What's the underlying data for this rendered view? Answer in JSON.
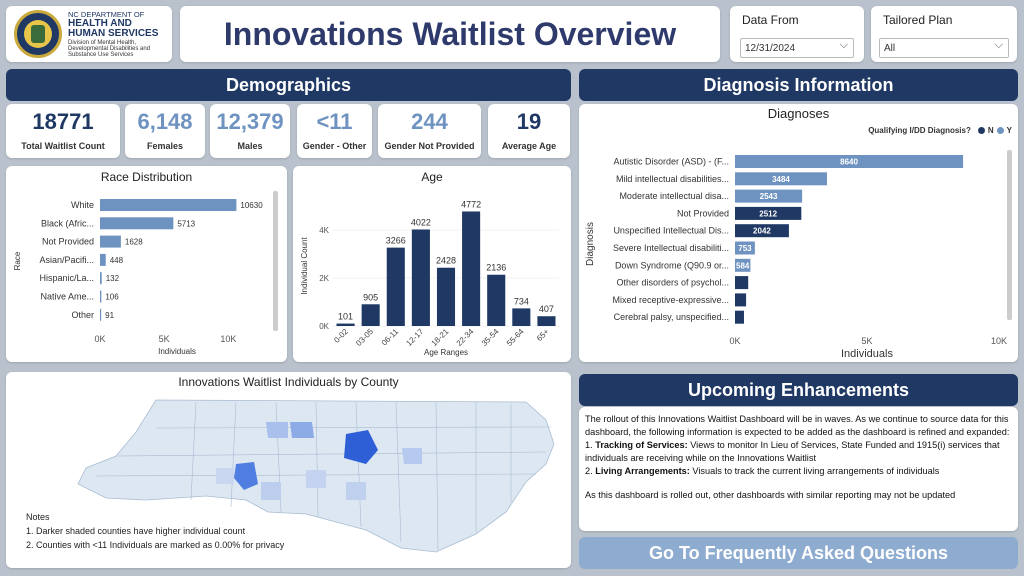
{
  "header": {
    "logo_line1": "NC DEPARTMENT OF",
    "logo_line2": "HEALTH AND",
    "logo_line3": "HUMAN SERVICES",
    "logo_line4": "Division of Mental Health,",
    "logo_line5": "Developmental Disabilities and",
    "logo_line6": "Substance Use Services",
    "title": "Innovations Waitlist Overview"
  },
  "filters": {
    "date_label": "Data From",
    "date_value": "12/31/2024",
    "plan_label": "Tailored Plan",
    "plan_value": "All"
  },
  "demographics": {
    "header": "Demographics",
    "kpis": [
      {
        "value": "18771",
        "label": "Total Waitlist Count",
        "color": "#1f3864"
      },
      {
        "value": "6,148",
        "label": "Females",
        "color": "#6f93c0"
      },
      {
        "value": "12,379",
        "label": "Males",
        "color": "#6f93c0"
      },
      {
        "value": "<11",
        "label": "Gender - Other",
        "color": "#6f93c0"
      },
      {
        "value": "244",
        "label": "Gender Not Provided",
        "color": "#6f93c0"
      },
      {
        "value": "19",
        "label": "Average Age",
        "color": "#1f3864"
      }
    ]
  },
  "race_chart": {
    "title": "Race Distribution",
    "ylabel": "Race",
    "xlabel": "Individuals",
    "categories": [
      "White",
      "Black (Afric...",
      "Not Provided",
      "Asian/Pacifi...",
      "Hispanic/La...",
      "Native Ame...",
      "Other"
    ],
    "values": [
      10630,
      5713,
      1628,
      448,
      132,
      106,
      91
    ],
    "ticks": [
      "0K",
      "5K",
      "10K"
    ]
  },
  "age_chart": {
    "title": "Age",
    "ylabel": "Individual Count",
    "xlabel": "Age Ranges",
    "categories": [
      "0-02",
      "03-05",
      "06-11",
      "12-17",
      "18-21",
      "22-34",
      "35-54",
      "55-64",
      "65+"
    ],
    "values": [
      101,
      905,
      3266,
      4022,
      2428,
      4772,
      2136,
      734,
      407
    ],
    "ticks": [
      "0K",
      "2K",
      "4K"
    ]
  },
  "map": {
    "title": "Innovations Waitlist Individuals by County",
    "notes_title": "Notes",
    "note1": "1. Darker shaded counties have higher individual count",
    "note2": "2. Counties with <11 Individuals are marked as 0.00% for privacy"
  },
  "diagnosis": {
    "header": "Diagnosis Information",
    "chart_title": "Diagnoses",
    "legend_title": "Qualifying I/DD Diagnosis?",
    "legend_n": "N",
    "legend_y": "Y",
    "ylabel": "Diagnosis",
    "xlabel": "Individuals",
    "ticks": [
      "0K",
      "5K",
      "10K"
    ]
  },
  "chart_data": [
    {
      "type": "bar",
      "title": "Race Distribution",
      "xlabel": "Individuals",
      "ylabel": "Race",
      "categories": [
        "White",
        "Black (Afric...",
        "Not Provided",
        "Asian/Pacifi...",
        "Hispanic/La...",
        "Native Ame...",
        "Other"
      ],
      "values": [
        10630,
        5713,
        1628,
        448,
        132,
        106,
        91
      ],
      "xlim": [
        0,
        12000
      ]
    },
    {
      "type": "bar",
      "title": "Age",
      "xlabel": "Age Ranges",
      "ylabel": "Individual Count",
      "categories": [
        "0-02",
        "03-05",
        "06-11",
        "12-17",
        "18-21",
        "22-34",
        "35-54",
        "55-64",
        "65+"
      ],
      "values": [
        101,
        905,
        3266,
        4022,
        2428,
        4772,
        2136,
        734,
        407
      ],
      "ylim": [
        0,
        5000
      ]
    },
    {
      "type": "bar",
      "title": "Diagnoses",
      "xlabel": "Individuals",
      "ylabel": "Diagnosis",
      "categories": [
        "Autistic Disorder (ASD) - (F...",
        "Mild intellectual disabilities...",
        "Moderate intellectual disa...",
        "Not Provided",
        "Unspecified Intellectual Dis...",
        "Severe Intellectual disabiliti...",
        "Down Syndrome (Q90.9 or...",
        "Other disorders of psychol...",
        "Mixed receptive-expressive...",
        "Cerebral palsy, unspecified..."
      ],
      "values": [
        8640,
        3484,
        2543,
        2512,
        2042,
        753,
        584,
        500,
        420,
        340
      ],
      "labels": [
        "8640",
        "3484",
        "2543",
        "2512",
        "2042",
        "753",
        "584",
        "",
        "",
        ""
      ],
      "qualifying": [
        "Y",
        "Y",
        "Y",
        "N",
        "N",
        "Y",
        "Y",
        "N",
        "N",
        "N"
      ],
      "xlim": [
        0,
        10000
      ],
      "colors": {
        "N": "#1f3864",
        "Y": "#6f93c0"
      }
    }
  ],
  "enhancements": {
    "header": "Upcoming Enhancements",
    "intro": "The rollout of this Innovations Waitlist Dashboard will be in waves. As we continue to source data for this dashboard, the following information is expected to be added as the dashboard is refined and expanded:",
    "item1_bold": "Tracking of Services:",
    "item1_text": " Views to monitor In Lieu of Services, State Funded and 1915(i) services that individuals are receiving while on the Innovations Waitlist",
    "item2_bold": "Living Arrangements:",
    "item2_text": " Visuals to track the current living arrangements of individuals",
    "outro": "As this dashboard is rolled out, other dashboards with similar reporting may not be updated"
  },
  "faq_button": "Go To Frequently Asked Questions"
}
